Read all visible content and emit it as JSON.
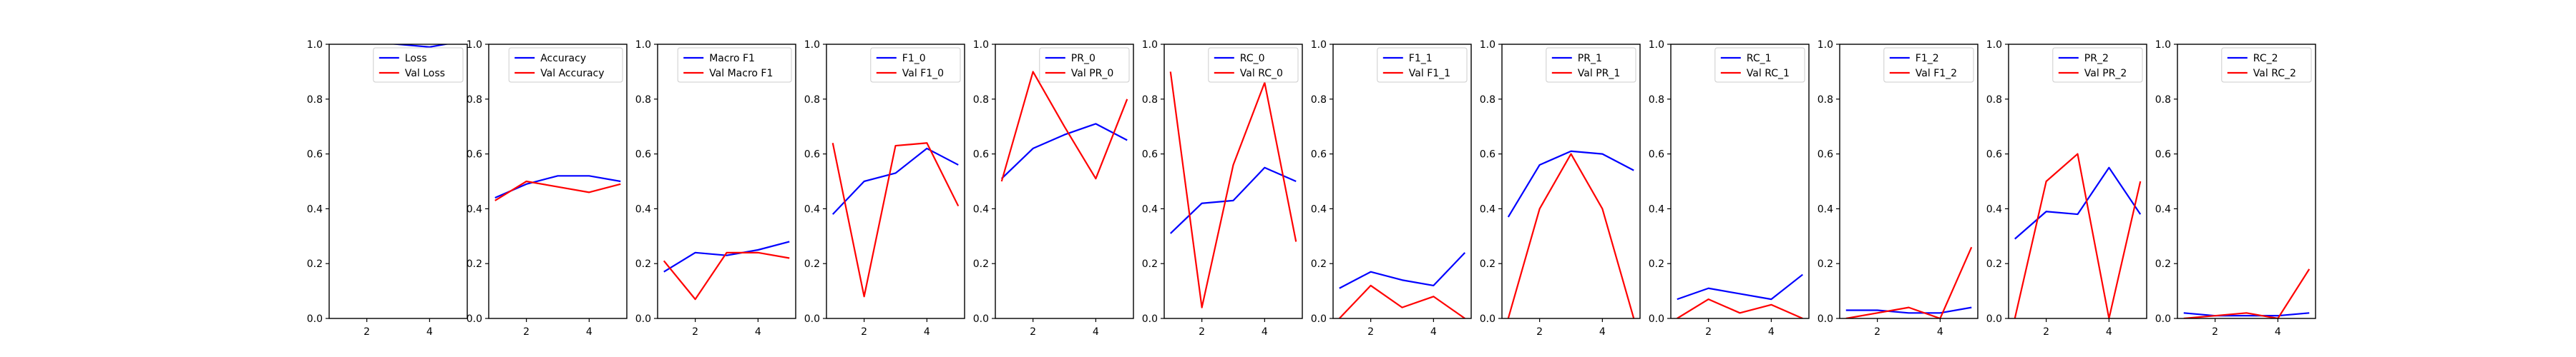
{
  "colors": {
    "train": "#0000ff",
    "val": "#ff0000",
    "axis": "#000000",
    "background": "#ffffff"
  },
  "shared": {
    "x": [
      1,
      2,
      3,
      4,
      5
    ],
    "xticks": [
      2,
      4
    ],
    "xlim": [
      0.8,
      5.2
    ],
    "ylim": [
      0.0,
      1.0
    ],
    "yticks": [
      "0.0",
      "0.2",
      "0.4",
      "0.6",
      "0.8",
      "1.0"
    ],
    "grid": false,
    "legend_position": "upper-right"
  },
  "chart_data": [
    {
      "type": "line",
      "series": [
        {
          "name": "Loss",
          "values": [
            1.06,
            1.01,
            1.0,
            0.99,
            1.01
          ]
        },
        {
          "name": "Val Loss",
          "values": [
            1.1,
            1.07,
            1.05,
            1.04,
            1.03
          ]
        }
      ]
    },
    {
      "type": "line",
      "series": [
        {
          "name": "Accuracy",
          "values": [
            0.44,
            0.49,
            0.52,
            0.52,
            0.5
          ]
        },
        {
          "name": "Val Accuracy",
          "values": [
            0.43,
            0.5,
            0.48,
            0.46,
            0.49
          ]
        }
      ]
    },
    {
      "type": "line",
      "series": [
        {
          "name": "Macro F1",
          "values": [
            0.17,
            0.24,
            0.23,
            0.25,
            0.28
          ]
        },
        {
          "name": "Val Macro F1",
          "values": [
            0.21,
            0.07,
            0.24,
            0.24,
            0.22
          ]
        }
      ]
    },
    {
      "type": "line",
      "series": [
        {
          "name": "F1_0",
          "values": [
            0.38,
            0.5,
            0.53,
            0.62,
            0.56
          ]
        },
        {
          "name": "Val F1_0",
          "values": [
            0.64,
            0.08,
            0.63,
            0.64,
            0.41
          ]
        }
      ]
    },
    {
      "type": "line",
      "series": [
        {
          "name": "PR_0",
          "values": [
            0.51,
            0.62,
            0.67,
            0.71,
            0.65
          ]
        },
        {
          "name": "Val PR_0",
          "values": [
            0.5,
            0.9,
            0.7,
            0.51,
            0.8
          ]
        }
      ]
    },
    {
      "type": "line",
      "series": [
        {
          "name": "RC_0",
          "values": [
            0.31,
            0.42,
            0.43,
            0.55,
            0.5
          ]
        },
        {
          "name": "Val RC_0",
          "values": [
            0.9,
            0.04,
            0.56,
            0.86,
            0.28
          ]
        }
      ]
    },
    {
      "type": "line",
      "series": [
        {
          "name": "F1_1",
          "values": [
            0.11,
            0.17,
            0.14,
            0.12,
            0.24
          ]
        },
        {
          "name": "Val F1_1",
          "values": [
            0.0,
            0.12,
            0.04,
            0.08,
            0.0
          ]
        }
      ]
    },
    {
      "type": "line",
      "series": [
        {
          "name": "PR_1",
          "values": [
            0.37,
            0.56,
            0.61,
            0.6,
            0.54
          ]
        },
        {
          "name": "Val PR_1",
          "values": [
            0.0,
            0.4,
            0.6,
            0.4,
            0.0
          ]
        }
      ]
    },
    {
      "type": "line",
      "series": [
        {
          "name": "RC_1",
          "values": [
            0.07,
            0.11,
            0.09,
            0.07,
            0.16
          ]
        },
        {
          "name": "Val RC_1",
          "values": [
            0.0,
            0.07,
            0.02,
            0.05,
            0.0
          ]
        }
      ]
    },
    {
      "type": "line",
      "series": [
        {
          "name": "F1_2",
          "values": [
            0.03,
            0.03,
            0.02,
            0.02,
            0.04
          ]
        },
        {
          "name": "Val F1_2",
          "values": [
            0.0,
            0.02,
            0.04,
            0.0,
            0.26
          ]
        }
      ]
    },
    {
      "type": "line",
      "series": [
        {
          "name": "PR_2",
          "values": [
            0.29,
            0.39,
            0.38,
            0.55,
            0.38
          ]
        },
        {
          "name": "Val PR_2",
          "values": [
            0.0,
            0.5,
            0.6,
            0.0,
            0.5
          ]
        }
      ]
    },
    {
      "type": "line",
      "series": [
        {
          "name": "RC_2",
          "values": [
            0.02,
            0.01,
            0.01,
            0.01,
            0.02
          ]
        },
        {
          "name": "Val RC_2",
          "values": [
            0.0,
            0.01,
            0.02,
            0.0,
            0.18
          ]
        }
      ]
    }
  ]
}
